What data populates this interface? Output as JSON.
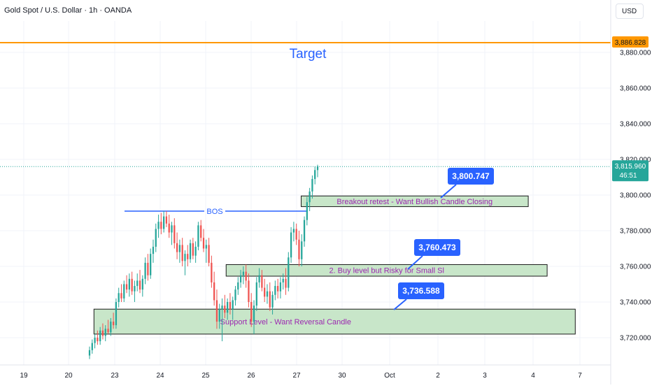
{
  "header": {
    "title": "Gold Spot / U.S. Dollar · 1h · OANDA",
    "currency_button": "USD"
  },
  "colors": {
    "up": "#26a69a",
    "down": "#ef5350",
    "target_line": "#ff9800",
    "bos_line": "#2962ff",
    "zone_fill": "#c8e6c9",
    "zone_text": "#9c27b0",
    "callout_bg": "#2962ff",
    "price_now": "#26a69a",
    "target_text": "#2962ff"
  },
  "chart_data": {
    "type": "candlestick",
    "symbol": "Gold Spot / U.S. Dollar",
    "interval": "1h",
    "source": "OANDA",
    "x_ticks": [
      "19",
      "20",
      "23",
      "24",
      "25",
      "26",
      "27",
      "30",
      "Oct",
      "2",
      "3",
      "4",
      "7"
    ],
    "y_ticks": [
      3720,
      3740,
      3760,
      3780,
      3800,
      3820,
      3840,
      3860,
      3880
    ],
    "y_range": [
      3708,
      3893
    ],
    "target_price": "3,886.828",
    "current_price": "3,815.960",
    "countdown": "46:51",
    "target_label": "Target",
    "bos_label": "BOS",
    "bos_level": 3791,
    "zones": [
      {
        "name": "breakout-retest",
        "label": "Breakout retest - Want Bullish Candle Closing",
        "y_top": 3799.5,
        "y_bottom": 3793.5,
        "x_start_day": 6.1,
        "x_end_day": 10.9
      },
      {
        "name": "buy-level",
        "label": "2. Buy level but Risky for Small Sl",
        "y_top": 3761,
        "y_bottom": 3754.5,
        "x_start_day": 4.45,
        "x_end_day": 11.3
      },
      {
        "name": "support",
        "label": "Support Level - Want Reversal Candle",
        "y_top": 3736,
        "y_bottom": 3722,
        "x_start_day": 1.55,
        "x_end_day": 11.9
      }
    ],
    "callouts": [
      {
        "name": "callout-3800",
        "label": "3,800.747",
        "price": 3800.747
      },
      {
        "name": "callout-3760",
        "label": "3,760.473",
        "price": 3760.473
      },
      {
        "name": "callout-3736",
        "label": "3,736.588",
        "price": 3736.588
      }
    ],
    "candles": [
      [
        3710,
        3715,
        3708,
        3713
      ],
      [
        3713,
        3719,
        3711,
        3717
      ],
      [
        3717,
        3722,
        3714,
        3720
      ],
      [
        3720,
        3724,
        3716,
        3718
      ],
      [
        3718,
        3726,
        3716,
        3724
      ],
      [
        3724,
        3728,
        3719,
        3721
      ],
      [
        3721,
        3727,
        3718,
        3725
      ],
      [
        3725,
        3730,
        3722,
        3723
      ],
      [
        3723,
        3731,
        3721,
        3729
      ],
      [
        3729,
        3734,
        3725,
        3727
      ],
      [
        3727,
        3742,
        3725,
        3740
      ],
      [
        3740,
        3748,
        3737,
        3745
      ],
      [
        3745,
        3750,
        3740,
        3742
      ],
      [
        3742,
        3752,
        3740,
        3750
      ],
      [
        3750,
        3755,
        3745,
        3747
      ],
      [
        3747,
        3756,
        3743,
        3753
      ],
      [
        3753,
        3757,
        3744,
        3746
      ],
      [
        3746,
        3752,
        3740,
        3749
      ],
      [
        3749,
        3756,
        3746,
        3752
      ],
      [
        3752,
        3758,
        3745,
        3747
      ],
      [
        3747,
        3755,
        3743,
        3753
      ],
      [
        3753,
        3765,
        3750,
        3762
      ],
      [
        3762,
        3767,
        3752,
        3755
      ],
      [
        3755,
        3770,
        3753,
        3767
      ],
      [
        3767,
        3775,
        3762,
        3771
      ],
      [
        3771,
        3784,
        3768,
        3781
      ],
      [
        3781,
        3789,
        3776,
        3785
      ],
      [
        3785,
        3790,
        3778,
        3781
      ],
      [
        3781,
        3791,
        3779,
        3788
      ],
      [
        3788,
        3791,
        3782,
        3784
      ],
      [
        3784,
        3789,
        3776,
        3779
      ],
      [
        3779,
        3785,
        3772,
        3783
      ],
      [
        3783,
        3787,
        3770,
        3773
      ],
      [
        3773,
        3779,
        3764,
        3768
      ],
      [
        3768,
        3775,
        3762,
        3772
      ],
      [
        3772,
        3776,
        3760,
        3763
      ],
      [
        3763,
        3769,
        3755,
        3767
      ],
      [
        3767,
        3772,
        3760,
        3764
      ],
      [
        3764,
        3775,
        3762,
        3773
      ],
      [
        3773,
        3776,
        3764,
        3766
      ],
      [
        3766,
        3774,
        3762,
        3771
      ],
      [
        3771,
        3785,
        3769,
        3783
      ],
      [
        3783,
        3786,
        3774,
        3776
      ],
      [
        3776,
        3781,
        3768,
        3770
      ],
      [
        3770,
        3775,
        3762,
        3772
      ],
      [
        3772,
        3776,
        3760,
        3762
      ],
      [
        3762,
        3766,
        3748,
        3751
      ],
      [
        3751,
        3757,
        3738,
        3741
      ],
      [
        3741,
        3747,
        3725,
        3729
      ],
      [
        3729,
        3739,
        3725,
        3736
      ],
      [
        3736,
        3742,
        3718,
        3738
      ],
      [
        3738,
        3744,
        3731,
        3734
      ],
      [
        3734,
        3742,
        3730,
        3740
      ],
      [
        3740,
        3745,
        3733,
        3736
      ],
      [
        3736,
        3743,
        3730,
        3741
      ],
      [
        3741,
        3749,
        3738,
        3747
      ],
      [
        3747,
        3754,
        3744,
        3751
      ],
      [
        3751,
        3758,
        3748,
        3755
      ],
      [
        3755,
        3760,
        3750,
        3757
      ],
      [
        3757,
        3761,
        3748,
        3752
      ],
      [
        3752,
        3756,
        3737,
        3740
      ],
      [
        3740,
        3745,
        3726,
        3729
      ],
      [
        3729,
        3741,
        3722,
        3738
      ],
      [
        3738,
        3754,
        3735,
        3751
      ],
      [
        3751,
        3759,
        3748,
        3755
      ],
      [
        3755,
        3758,
        3746,
        3748
      ],
      [
        3748,
        3753,
        3740,
        3743
      ],
      [
        3743,
        3750,
        3739,
        3746
      ],
      [
        3746,
        3751,
        3735,
        3737
      ],
      [
        3737,
        3746,
        3733,
        3744
      ],
      [
        3744,
        3752,
        3741,
        3749
      ],
      [
        3749,
        3753,
        3742,
        3746
      ],
      [
        3746,
        3754,
        3742,
        3751
      ],
      [
        3751,
        3756,
        3747,
        3753
      ],
      [
        3753,
        3759,
        3744,
        3748
      ],
      [
        3748,
        3768,
        3746,
        3765
      ],
      [
        3765,
        3782,
        3762,
        3779
      ],
      [
        3779,
        3785,
        3774,
        3781
      ],
      [
        3781,
        3784,
        3772,
        3775
      ],
      [
        3775,
        3780,
        3760,
        3764
      ],
      [
        3764,
        3778,
        3760,
        3774
      ],
      [
        3774,
        3788,
        3771,
        3786
      ],
      [
        3786,
        3799,
        3783,
        3796
      ],
      [
        3796,
        3804,
        3791,
        3802
      ],
      [
        3802,
        3811,
        3798,
        3809
      ],
      [
        3809,
        3816,
        3806,
        3814
      ],
      [
        3814,
        3817,
        3810,
        3816
      ]
    ]
  }
}
